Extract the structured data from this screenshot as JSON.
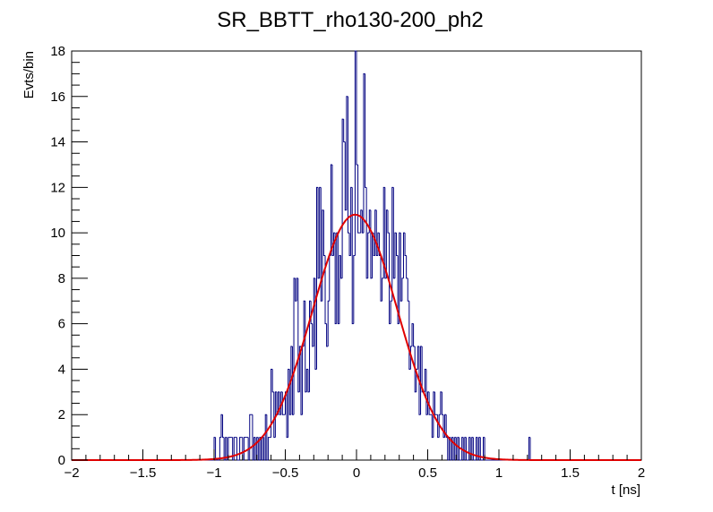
{
  "chart_data": {
    "type": "histogram",
    "title": "SR_BBTT_rho130-200_ph2",
    "xlabel": "t [ns]",
    "ylabel": "Evts/bin",
    "xlim": [
      -2,
      2
    ],
    "ylim": [
      0,
      18
    ],
    "x_ticks": [
      "−2",
      "−1.5",
      "−1",
      "−0.5",
      "0",
      "0.5",
      "1",
      "1.5",
      "2"
    ],
    "y_ticks": [
      "0",
      "2",
      "4",
      "6",
      "8",
      "10",
      "12",
      "14",
      "16",
      "18"
    ],
    "grid": false,
    "histogram": {
      "color": "#000080",
      "bin_width": 0.01,
      "bins": [
        [
          -1.0,
          -0.99,
          1
        ],
        [
          -0.96,
          -0.95,
          1
        ],
        [
          -0.95,
          -0.94,
          2
        ],
        [
          -0.94,
          -0.93,
          1
        ],
        [
          -0.92,
          -0.91,
          1
        ],
        [
          -0.9,
          -0.89,
          1
        ],
        [
          -0.89,
          -0.88,
          1
        ],
        [
          -0.88,
          -0.87,
          1
        ],
        [
          -0.86,
          -0.85,
          1
        ],
        [
          -0.85,
          -0.84,
          1
        ],
        [
          -0.82,
          -0.81,
          1
        ],
        [
          -0.81,
          -0.8,
          1
        ],
        [
          -0.79,
          -0.78,
          1
        ],
        [
          -0.78,
          -0.77,
          1
        ],
        [
          -0.77,
          -0.76,
          1
        ],
        [
          -0.75,
          -0.74,
          2
        ],
        [
          -0.74,
          -0.73,
          2
        ],
        [
          -0.72,
          -0.71,
          1
        ],
        [
          -0.7,
          -0.69,
          1
        ],
        [
          -0.68,
          -0.67,
          1
        ],
        [
          -0.66,
          -0.65,
          1
        ],
        [
          -0.64,
          -0.63,
          2
        ],
        [
          -0.62,
          -0.61,
          1
        ],
        [
          -0.61,
          -0.6,
          1
        ],
        [
          -0.6,
          -0.59,
          4
        ],
        [
          -0.59,
          -0.58,
          3
        ],
        [
          -0.58,
          -0.57,
          1
        ],
        [
          -0.57,
          -0.56,
          3
        ],
        [
          -0.56,
          -0.55,
          2
        ],
        [
          -0.55,
          -0.54,
          3
        ],
        [
          -0.54,
          -0.53,
          2
        ],
        [
          -0.53,
          -0.52,
          3
        ],
        [
          -0.52,
          -0.51,
          2
        ],
        [
          -0.51,
          -0.5,
          2
        ],
        [
          -0.5,
          -0.49,
          3
        ],
        [
          -0.49,
          -0.48,
          1
        ],
        [
          -0.48,
          -0.47,
          4
        ],
        [
          -0.47,
          -0.46,
          2
        ],
        [
          -0.46,
          -0.45,
          5
        ],
        [
          -0.45,
          -0.44,
          2
        ],
        [
          -0.44,
          -0.43,
          8
        ],
        [
          -0.43,
          -0.42,
          7
        ],
        [
          -0.42,
          -0.41,
          8
        ],
        [
          -0.41,
          -0.4,
          3
        ],
        [
          -0.4,
          -0.39,
          5
        ],
        [
          -0.39,
          -0.38,
          2
        ],
        [
          -0.38,
          -0.37,
          5
        ],
        [
          -0.37,
          -0.36,
          7
        ],
        [
          -0.36,
          -0.35,
          3
        ],
        [
          -0.35,
          -0.34,
          4
        ],
        [
          -0.34,
          -0.33,
          3
        ],
        [
          -0.33,
          -0.32,
          7
        ],
        [
          -0.32,
          -0.31,
          6
        ],
        [
          -0.31,
          -0.3,
          5
        ],
        [
          -0.3,
          -0.29,
          8
        ],
        [
          -0.29,
          -0.28,
          4
        ],
        [
          -0.28,
          -0.27,
          12
        ],
        [
          -0.27,
          -0.26,
          8
        ],
        [
          -0.26,
          -0.25,
          12
        ],
        [
          -0.25,
          -0.24,
          7
        ],
        [
          -0.24,
          -0.23,
          11
        ],
        [
          -0.23,
          -0.22,
          9
        ],
        [
          -0.22,
          -0.21,
          6
        ],
        [
          -0.21,
          -0.2,
          5
        ],
        [
          -0.2,
          -0.19,
          7
        ],
        [
          -0.19,
          -0.18,
          9
        ],
        [
          -0.18,
          -0.17,
          13
        ],
        [
          -0.17,
          -0.16,
          9
        ],
        [
          -0.16,
          -0.15,
          10
        ],
        [
          -0.15,
          -0.14,
          6
        ],
        [
          -0.14,
          -0.13,
          10
        ],
        [
          -0.13,
          -0.12,
          6
        ],
        [
          -0.12,
          -0.11,
          9
        ],
        [
          -0.11,
          -0.1,
          8
        ],
        [
          -0.1,
          -0.09,
          15
        ],
        [
          -0.09,
          -0.08,
          14
        ],
        [
          -0.08,
          -0.07,
          11
        ],
        [
          -0.07,
          -0.06,
          16
        ],
        [
          -0.06,
          -0.05,
          10
        ],
        [
          -0.05,
          -0.04,
          9
        ],
        [
          -0.04,
          -0.03,
          12
        ],
        [
          -0.03,
          -0.02,
          6
        ],
        [
          -0.02,
          -0.01,
          9
        ],
        [
          -0.01,
          0.0,
          18
        ],
        [
          0.0,
          0.01,
          13
        ],
        [
          0.01,
          0.02,
          10
        ],
        [
          0.02,
          0.03,
          10
        ],
        [
          0.03,
          0.04,
          11
        ],
        [
          0.04,
          0.05,
          10
        ],
        [
          0.05,
          0.06,
          17
        ],
        [
          0.06,
          0.07,
          12
        ],
        [
          0.07,
          0.08,
          8
        ],
        [
          0.08,
          0.09,
          10
        ],
        [
          0.09,
          0.1,
          11
        ],
        [
          0.1,
          0.11,
          8
        ],
        [
          0.11,
          0.12,
          10
        ],
        [
          0.12,
          0.13,
          9
        ],
        [
          0.13,
          0.14,
          11
        ],
        [
          0.14,
          0.15,
          9
        ],
        [
          0.15,
          0.16,
          10
        ],
        [
          0.16,
          0.17,
          9
        ],
        [
          0.17,
          0.18,
          7
        ],
        [
          0.18,
          0.19,
          8
        ],
        [
          0.19,
          0.2,
          12
        ],
        [
          0.2,
          0.21,
          8
        ],
        [
          0.21,
          0.22,
          11
        ],
        [
          0.22,
          0.23,
          10
        ],
        [
          0.23,
          0.24,
          6
        ],
        [
          0.24,
          0.25,
          7
        ],
        [
          0.25,
          0.26,
          12
        ],
        [
          0.26,
          0.27,
          8
        ],
        [
          0.27,
          0.28,
          10
        ],
        [
          0.28,
          0.29,
          9
        ],
        [
          0.29,
          0.3,
          6
        ],
        [
          0.3,
          0.31,
          10
        ],
        [
          0.31,
          0.32,
          7
        ],
        [
          0.32,
          0.33,
          8
        ],
        [
          0.33,
          0.34,
          10
        ],
        [
          0.34,
          0.35,
          9
        ],
        [
          0.35,
          0.36,
          8
        ],
        [
          0.36,
          0.37,
          7
        ],
        [
          0.37,
          0.38,
          4
        ],
        [
          0.38,
          0.39,
          5
        ],
        [
          0.39,
          0.4,
          6
        ],
        [
          0.4,
          0.41,
          5
        ],
        [
          0.41,
          0.42,
          3
        ],
        [
          0.42,
          0.43,
          4
        ],
        [
          0.43,
          0.44,
          5
        ],
        [
          0.44,
          0.45,
          2
        ],
        [
          0.45,
          0.46,
          5
        ],
        [
          0.46,
          0.47,
          3
        ],
        [
          0.47,
          0.48,
          3
        ],
        [
          0.48,
          0.49,
          4
        ],
        [
          0.49,
          0.5,
          2
        ],
        [
          0.5,
          0.51,
          3
        ],
        [
          0.51,
          0.52,
          2
        ],
        [
          0.52,
          0.53,
          2
        ],
        [
          0.53,
          0.54,
          1
        ],
        [
          0.54,
          0.55,
          3
        ],
        [
          0.55,
          0.56,
          2
        ],
        [
          0.56,
          0.57,
          2
        ],
        [
          0.57,
          0.58,
          1
        ],
        [
          0.58,
          0.59,
          2
        ],
        [
          0.59,
          0.6,
          3
        ],
        [
          0.6,
          0.61,
          2
        ],
        [
          0.61,
          0.62,
          1
        ],
        [
          0.62,
          0.63,
          2
        ],
        [
          0.63,
          0.64,
          1
        ],
        [
          0.65,
          0.66,
          1
        ],
        [
          0.67,
          0.68,
          1
        ],
        [
          0.69,
          0.7,
          1
        ],
        [
          0.71,
          0.72,
          1
        ],
        [
          0.74,
          0.75,
          1
        ],
        [
          0.76,
          0.77,
          1
        ],
        [
          0.79,
          0.8,
          1
        ],
        [
          0.81,
          0.82,
          1
        ],
        [
          0.84,
          0.85,
          1
        ],
        [
          0.86,
          0.87,
          1
        ],
        [
          0.89,
          0.9,
          1
        ],
        [
          1.21,
          1.22,
          1
        ]
      ]
    },
    "fit": {
      "type": "gaussian",
      "color": "#e00000",
      "amplitude": 10.8,
      "mean": -0.01,
      "sigma": 0.3
    }
  }
}
